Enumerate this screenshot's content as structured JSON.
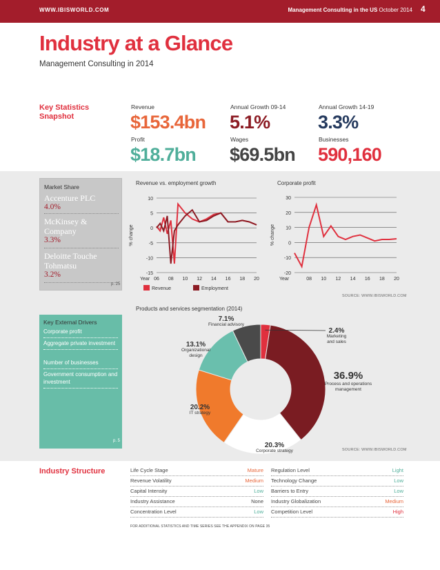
{
  "header": {
    "url": "WWW.IBISWORLD.COM",
    "report": "Management Consulting in the US",
    "date": "October 2014",
    "page": "4"
  },
  "title": "Industry at a Glance",
  "subtitle": "Management Consulting in 2014",
  "key_stats": {
    "label_line1": "Key Statistics",
    "label_line2": "Snapshot",
    "items": [
      {
        "label": "Revenue",
        "value": "$153.4bn",
        "color": "#e8663a"
      },
      {
        "label": "Annual Growth 09-14",
        "value": "5.1%",
        "color": "#8c1c24"
      },
      {
        "label": "Annual Growth 14-19",
        "value": "3.3%",
        "color": "#253a5e"
      },
      {
        "label": "Profit",
        "value": "$18.7bn",
        "color": "#4fae9a"
      },
      {
        "label": "Wages",
        "value": "$69.5bn",
        "color": "#444444"
      },
      {
        "label": "Businesses",
        "value": "590,160",
        "color": "#e0303e"
      }
    ]
  },
  "market_share": {
    "title": "Market Share",
    "companies": [
      {
        "name": "Accenture PLC",
        "share": "4.0%"
      },
      {
        "name": "McKinsey & Company",
        "share": "3.3%"
      },
      {
        "name": "Deloitte Touche Tohmatsu",
        "share": "3.2%"
      }
    ],
    "page_ref": "p. 25"
  },
  "external_drivers": {
    "title": "Key External Drivers",
    "items": [
      "Corporate profit",
      "Aggregate private investment",
      "Number of businesses",
      "Government consumption and investment"
    ],
    "page_ref": "p. 5"
  },
  "source": "SOURCE: WWW.IBISWORLD.COM",
  "chart_data": [
    {
      "type": "line",
      "title": "Revenue vs. employment growth",
      "ylabel": "% change",
      "xlabel": "Year",
      "x": [
        "06",
        "07",
        "08",
        "09",
        "10",
        "11",
        "12",
        "13",
        "14",
        "15",
        "16",
        "17",
        "18",
        "19",
        "20"
      ],
      "x_ticks": [
        "06",
        "08",
        "10",
        "12",
        "14",
        "16",
        "18",
        "20"
      ],
      "ylim": [
        -15,
        10
      ],
      "y_ticks": [
        "10",
        "5",
        "0",
        "-5",
        "-10",
        "-15"
      ],
      "y_tick_values": [
        10,
        5,
        0,
        -5,
        -10,
        -15
      ],
      "series": [
        {
          "name": "Revenue",
          "color": "#e0303e",
          "x": [
            6,
            6.5,
            7,
            7.5,
            8,
            8.5,
            9,
            10,
            11,
            12,
            13,
            14,
            15,
            16,
            17,
            18,
            19,
            20
          ],
          "values": [
            0.5,
            -1,
            3.5,
            -2,
            2.5,
            -12,
            8,
            5,
            3,
            2,
            3,
            4.5,
            5,
            2,
            2,
            2.5,
            2,
            1
          ]
        },
        {
          "name": "Employment",
          "color": "#8c1c24",
          "x": [
            6,
            6.5,
            7,
            7.5,
            8,
            8.5,
            9,
            10,
            11,
            12,
            13,
            14,
            15,
            16,
            17,
            18,
            19,
            20
          ],
          "values": [
            0,
            1.5,
            -1,
            4,
            -12,
            -1,
            1,
            4,
            6,
            2,
            2.5,
            4,
            5,
            2,
            2,
            2.5,
            2,
            1
          ]
        }
      ],
      "legend": [
        "Revenue",
        "Employment"
      ]
    },
    {
      "type": "line",
      "title": "Corporate profit",
      "ylabel": "% change",
      "xlabel": "Year",
      "x": [
        6,
        7,
        8,
        9,
        10,
        11,
        12,
        13,
        14,
        15,
        16,
        17,
        18,
        19,
        20
      ],
      "x_ticks": [
        "08",
        "10",
        "12",
        "14",
        "16",
        "18",
        "20"
      ],
      "ylim": [
        -20,
        30
      ],
      "y_ticks": [
        "30",
        "20",
        "10",
        "0",
        "-10",
        "-20"
      ],
      "y_tick_values": [
        30,
        20,
        10,
        0,
        -10,
        -20
      ],
      "series": [
        {
          "name": "Corporate profit",
          "color": "#e0303e",
          "values": [
            -7,
            -16,
            10,
            25,
            4,
            11,
            4,
            2,
            4,
            5,
            3,
            1,
            2,
            2,
            2.5
          ]
        }
      ]
    },
    {
      "type": "pie",
      "title": "Products and services segmentation",
      "year": "(2014)",
      "slices": [
        {
          "label": "Marketing and sales",
          "pct": "2.4%",
          "value": 2.4,
          "color": "#e0303e"
        },
        {
          "label": "Process and operations management",
          "pct": "36.9%",
          "value": 36.9,
          "color": "#7a1c22"
        },
        {
          "label": "Corporate strategy",
          "pct": "20.3%",
          "value": 20.3,
          "color": "#ffffff"
        },
        {
          "label": "IT strategy",
          "pct": "20.2%",
          "value": 20.2,
          "color": "#f07a2c"
        },
        {
          "label": "Organizational design",
          "pct": "13.1%",
          "value": 13.1,
          "color": "#6abfad"
        },
        {
          "label": "Financial advisory",
          "pct": "7.1%",
          "value": 7.1,
          "color": "#4a4a4a"
        }
      ]
    }
  ],
  "industry_structure": {
    "title": "Industry Structure",
    "left": [
      {
        "label": "Life Cycle Stage",
        "value": "Mature",
        "color": "#e8663a"
      },
      {
        "label": "Revenue Volatility",
        "value": "Medium",
        "color": "#e8663a"
      },
      {
        "label": "Capital Intensity",
        "value": "Low",
        "color": "#4fae9a"
      },
      {
        "label": "Industry Assistance",
        "value": "None",
        "color": "#444444"
      },
      {
        "label": "Concentration Level",
        "value": "Low",
        "color": "#4fae9a"
      }
    ],
    "right": [
      {
        "label": "Regulation Level",
        "value": "Light",
        "color": "#4fae9a"
      },
      {
        "label": "Technology Change",
        "value": "Low",
        "color": "#4fae9a"
      },
      {
        "label": "Barriers to Entry",
        "value": "Low",
        "color": "#4fae9a"
      },
      {
        "label": "Industry Globalization",
        "value": "Medium",
        "color": "#e8663a"
      },
      {
        "label": "Competition Level",
        "value": "High",
        "color": "#e0303e"
      }
    ],
    "footnote": "FOR ADDITIONAL STATISTICS AND TIME SERIES SEE THE APPENDIX ON PAGE 35"
  }
}
